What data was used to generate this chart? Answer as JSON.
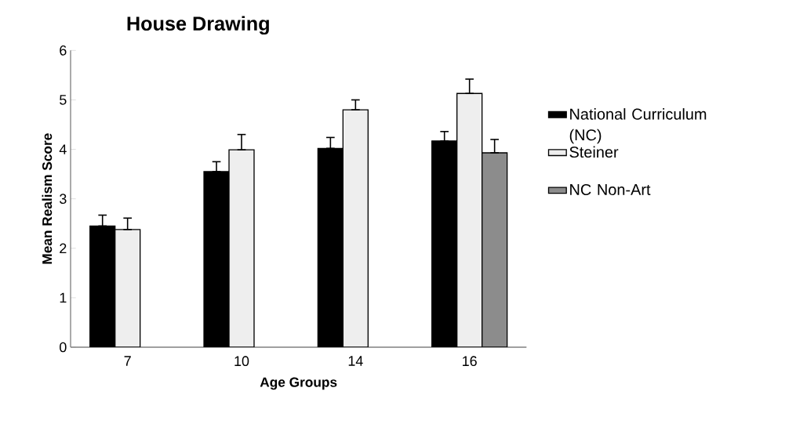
{
  "chart_data": {
    "type": "bar",
    "title": "House Drawing",
    "xlabel": "Age Groups",
    "ylabel": "Mean Realism Score",
    "categories": [
      "7",
      "10",
      "14",
      "16"
    ],
    "series": [
      {
        "name": "National Curriculum (NC)",
        "color": "#000000",
        "values": [
          2.45,
          3.55,
          4.02,
          4.17
        ],
        "errors": [
          [
            2.45,
            2.67
          ],
          [
            3.55,
            3.75
          ],
          [
            4.02,
            4.24
          ],
          [
            4.17,
            4.36
          ]
        ]
      },
      {
        "name": "Steiner",
        "color": "#eeeeee",
        "values": [
          2.38,
          3.99,
          4.8,
          5.13
        ],
        "errors": [
          [
            2.38,
            2.61
          ],
          [
            3.99,
            4.3
          ],
          [
            4.8,
            5.0
          ],
          [
            5.13,
            5.42
          ]
        ]
      },
      {
        "name": "NC Non-Art",
        "color": "#8c8c8c",
        "values": [
          null,
          null,
          null,
          3.93
        ],
        "errors": [
          null,
          null,
          null,
          [
            3.93,
            4.2
          ]
        ]
      }
    ],
    "ylim": [
      0,
      6
    ],
    "yticks": [
      0,
      1,
      2,
      3,
      4,
      5,
      6
    ],
    "grid": false,
    "legend": "right"
  }
}
